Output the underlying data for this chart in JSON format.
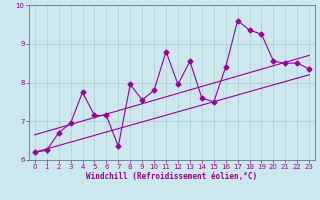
{
  "xlabel": "Windchill (Refroidissement éolien,°C)",
  "bg_color": "#cce8ec",
  "line_color": "#990099",
  "grid_color": "#aacccc",
  "spine_color": "#667788",
  "xlim": [
    -0.5,
    23.5
  ],
  "ylim": [
    6,
    10
  ],
  "yticks": [
    6,
    7,
    8,
    9,
    10
  ],
  "xticks": [
    0,
    1,
    2,
    3,
    4,
    5,
    6,
    7,
    8,
    9,
    10,
    11,
    12,
    13,
    14,
    15,
    16,
    17,
    18,
    19,
    20,
    21,
    22,
    23
  ],
  "series1_x": [
    0,
    1,
    2,
    3,
    4,
    5,
    6,
    7,
    8,
    9,
    10,
    11,
    12,
    13,
    14,
    15,
    16,
    17,
    18,
    19,
    20,
    21,
    22,
    23
  ],
  "series1_y": [
    6.2,
    6.25,
    6.7,
    6.95,
    7.75,
    7.15,
    7.15,
    6.35,
    7.95,
    7.55,
    7.8,
    8.8,
    7.95,
    8.55,
    7.6,
    7.5,
    8.4,
    9.6,
    9.35,
    9.25,
    8.55,
    8.5,
    8.5,
    8.35
  ],
  "series2_x": [
    0,
    23
  ],
  "series2_y": [
    6.2,
    8.2
  ],
  "series3_x": [
    0,
    23
  ],
  "series3_y": [
    6.65,
    8.7
  ],
  "tick_fontsize": 5,
  "xlabel_fontsize": 5.5,
  "marker_size": 2.5,
  "line_width": 0.8
}
